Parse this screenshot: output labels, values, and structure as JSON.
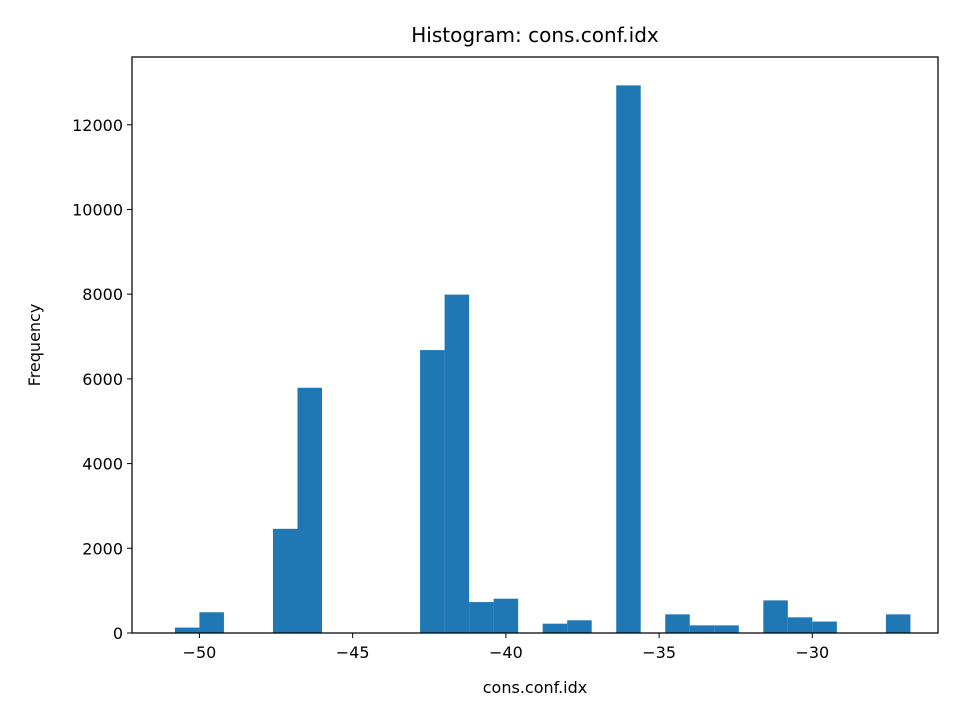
{
  "chart_data": {
    "type": "bar",
    "title": "Histogram: cons.conf.idx",
    "xlabel": "cons.conf.idx",
    "ylabel": "Frequency",
    "xlim": [
      -52.2,
      -25.9
    ],
    "ylim": [
      0,
      13600
    ],
    "bar_color": "#1f77b4",
    "x_ticks": [
      {
        "value": -50,
        "label": "−50"
      },
      {
        "value": -45,
        "label": "−45"
      },
      {
        "value": -40,
        "label": "−40"
      },
      {
        "value": -35,
        "label": "−35"
      },
      {
        "value": -30,
        "label": "−30"
      }
    ],
    "y_ticks": [
      {
        "value": 0,
        "label": "0"
      },
      {
        "value": 2000,
        "label": "2000"
      },
      {
        "value": 4000,
        "label": "4000"
      },
      {
        "value": 6000,
        "label": "6000"
      },
      {
        "value": 8000,
        "label": "8000"
      },
      {
        "value": 10000,
        "label": "10000"
      },
      {
        "value": 12000,
        "label": "12000"
      }
    ],
    "bins": [
      {
        "x0": -50.8,
        "x1": -50.0,
        "count": 128
      },
      {
        "x0": -50.0,
        "x1": -49.2,
        "count": 490
      },
      {
        "x0": -47.6,
        "x1": -46.8,
        "count": 2460
      },
      {
        "x0": -46.8,
        "x1": -46.0,
        "count": 5790
      },
      {
        "x0": -42.8,
        "x1": -42.0,
        "count": 6680
      },
      {
        "x0": -42.0,
        "x1": -41.2,
        "count": 7990
      },
      {
        "x0": -41.2,
        "x1": -40.4,
        "count": 730
      },
      {
        "x0": -40.4,
        "x1": -39.6,
        "count": 810
      },
      {
        "x0": -38.8,
        "x1": -38.0,
        "count": 220
      },
      {
        "x0": -38.0,
        "x1": -37.2,
        "count": 300
      },
      {
        "x0": -36.4,
        "x1": -35.6,
        "count": 12930
      },
      {
        "x0": -34.8,
        "x1": -34.0,
        "count": 440
      },
      {
        "x0": -34.0,
        "x1": -33.2,
        "count": 180
      },
      {
        "x0": -33.2,
        "x1": -32.4,
        "count": 180
      },
      {
        "x0": -31.6,
        "x1": -30.8,
        "count": 770
      },
      {
        "x0": -30.8,
        "x1": -30.0,
        "count": 370
      },
      {
        "x0": -30.0,
        "x1": -29.2,
        "count": 270
      },
      {
        "x0": -27.6,
        "x1": -26.8,
        "count": 440
      }
    ]
  }
}
